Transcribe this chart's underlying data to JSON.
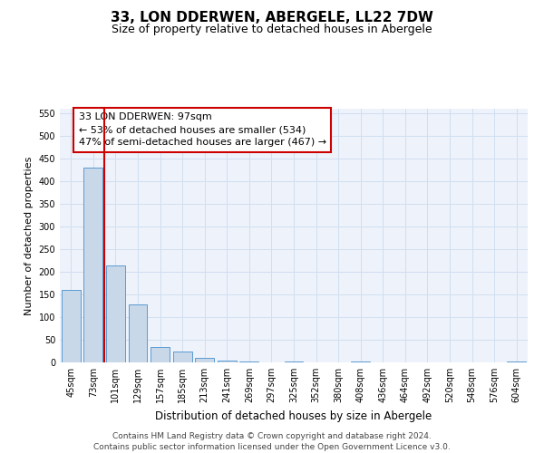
{
  "title1": "33, LON DDERWEN, ABERGELE, LL22 7DW",
  "title2": "Size of property relative to detached houses in Abergele",
  "xlabel": "Distribution of detached houses by size in Abergele",
  "ylabel": "Number of detached properties",
  "categories": [
    "45sqm",
    "73sqm",
    "101sqm",
    "129sqm",
    "157sqm",
    "185sqm",
    "213sqm",
    "241sqm",
    "269sqm",
    "297sqm",
    "325sqm",
    "352sqm",
    "380sqm",
    "408sqm",
    "436sqm",
    "464sqm",
    "492sqm",
    "520sqm",
    "548sqm",
    "576sqm",
    "604sqm"
  ],
  "values": [
    160,
    430,
    215,
    128,
    35,
    25,
    10,
    5,
    2,
    0,
    3,
    0,
    0,
    2,
    0,
    0,
    0,
    0,
    0,
    0,
    3
  ],
  "bar_color": "#c8d8e8",
  "bar_edge_color": "#5b9bd5",
  "grid_color": "#d0dff0",
  "annotation_text": "33 LON DDERWEN: 97sqm\n← 53% of detached houses are smaller (534)\n47% of semi-detached houses are larger (467) →",
  "annotation_box_color": "#ffffff",
  "annotation_box_edge": "#cc0000",
  "vline_color": "#cc0000",
  "vline_x": 1.5,
  "ylim": [
    0,
    560
  ],
  "yticks": [
    0,
    50,
    100,
    150,
    200,
    250,
    300,
    350,
    400,
    450,
    500,
    550
  ],
  "background_color": "#eef2fa",
  "footer_text": "Contains HM Land Registry data © Crown copyright and database right 2024.\nContains public sector information licensed under the Open Government Licence v3.0.",
  "title1_fontsize": 11,
  "title2_fontsize": 9,
  "xlabel_fontsize": 8.5,
  "ylabel_fontsize": 8,
  "tick_fontsize": 7,
  "annotation_fontsize": 8,
  "footer_fontsize": 6.5
}
